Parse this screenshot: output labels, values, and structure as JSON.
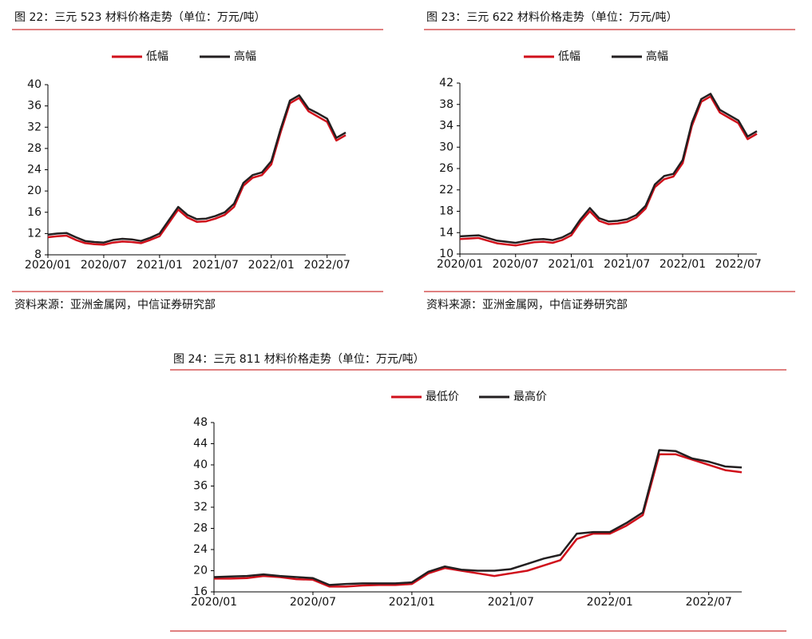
{
  "chart_data": [
    {
      "type": "line",
      "title": "图 22：三元 523 材料价格走势（单位：万元/吨）",
      "source": "资料来源：亚洲金属网，中信证券研究部",
      "categories": [
        "2020/01",
        null,
        null,
        null,
        null,
        null,
        "2020/07",
        null,
        null,
        null,
        null,
        null,
        "2021/01",
        null,
        null,
        null,
        null,
        null,
        "2021/07",
        null,
        null,
        null,
        null,
        null,
        "2022/01",
        null,
        null,
        null,
        null,
        null,
        "2022/07",
        null,
        null
      ],
      "series": [
        {
          "name": "低幅",
          "color": "#d0101b",
          "values": [
            11.3,
            11.5,
            11.6,
            10.8,
            10.2,
            10.0,
            9.9,
            10.3,
            10.5,
            10.4,
            10.2,
            10.8,
            11.5,
            14,
            16.5,
            15,
            14.2,
            14.3,
            14.8,
            15.5,
            17,
            21,
            22.5,
            23,
            25,
            31,
            36.5,
            37.5,
            35,
            34,
            33,
            29.5,
            30.5
          ]
        },
        {
          "name": "高幅",
          "color": "#231f20",
          "values": [
            11.8,
            12,
            12.1,
            11.3,
            10.6,
            10.4,
            10.3,
            10.8,
            11,
            10.9,
            10.6,
            11.2,
            12,
            14.5,
            17,
            15.5,
            14.7,
            14.8,
            15.3,
            16,
            17.6,
            21.5,
            23,
            23.5,
            25.6,
            31.6,
            37,
            38,
            35.5,
            34.6,
            33.6,
            30,
            31
          ]
        }
      ],
      "ylim": [
        8,
        40
      ],
      "yticks": [
        8,
        12,
        16,
        20,
        24,
        28,
        32,
        36,
        40
      ]
    },
    {
      "type": "line",
      "title": "图 23：三元 622 材料价格走势（单位：万元/吨）",
      "source": "资料来源：亚洲金属网，中信证券研究部",
      "categories": [
        "2020/01",
        null,
        null,
        null,
        null,
        null,
        "2020/07",
        null,
        null,
        null,
        null,
        null,
        "2021/01",
        null,
        null,
        null,
        null,
        null,
        "2021/07",
        null,
        null,
        null,
        null,
        null,
        "2022/01",
        null,
        null,
        null,
        null,
        null,
        "2022/07",
        null,
        null
      ],
      "series": [
        {
          "name": "低幅",
          "color": "#d0101b",
          "values": [
            12.8,
            12.9,
            13,
            12.5,
            12,
            11.8,
            11.6,
            11.9,
            12.2,
            12.3,
            12.1,
            12.6,
            13.5,
            16,
            18,
            16.2,
            15.6,
            15.7,
            16,
            16.8,
            18.5,
            22.5,
            24,
            24.5,
            27,
            34,
            38.5,
            39.5,
            36.5,
            35.5,
            34.5,
            31.5,
            32.5
          ]
        },
        {
          "name": "高幅",
          "color": "#231f20",
          "values": [
            13.3,
            13.4,
            13.5,
            13,
            12.5,
            12.3,
            12.1,
            12.4,
            12.7,
            12.8,
            12.6,
            13.1,
            14,
            16.5,
            18.6,
            16.7,
            16.1,
            16.2,
            16.5,
            17.3,
            19,
            23,
            24.6,
            25,
            27.6,
            34.6,
            39,
            40,
            37,
            36,
            35,
            32,
            33
          ]
        }
      ],
      "ylim": [
        10,
        42
      ],
      "yticks": [
        10,
        14,
        18,
        22,
        26,
        30,
        34,
        38,
        42
      ]
    },
    {
      "type": "line",
      "title": "图 24：三元 811 材料价格走势（单位：万元/吨）",
      "categories": [
        "2020/01",
        null,
        null,
        null,
        null,
        null,
        "2020/07",
        null,
        null,
        null,
        null,
        null,
        "2021/01",
        null,
        null,
        null,
        null,
        null,
        "2021/07",
        null,
        null,
        null,
        null,
        null,
        "2022/01",
        null,
        null,
        null,
        null,
        null,
        "2022/07",
        null,
        null
      ],
      "series": [
        {
          "name": "最低价",
          "color": "#d0101b",
          "values": [
            18.5,
            18.5,
            18.6,
            19,
            18.8,
            18.4,
            18.3,
            17,
            17,
            17.2,
            17.3,
            17.3,
            17.5,
            19.5,
            20.5,
            20,
            19.5,
            19,
            19.5,
            20,
            21,
            22,
            26,
            27,
            27,
            28.5,
            30.5,
            42,
            42,
            41,
            40,
            39,
            38.6
          ]
        },
        {
          "name": "最高价",
          "color": "#231f20",
          "values": [
            18.8,
            18.9,
            19,
            19.3,
            19,
            18.8,
            18.6,
            17.3,
            17.5,
            17.6,
            17.6,
            17.6,
            17.8,
            19.8,
            20.8,
            20.2,
            20,
            20,
            20.3,
            21.3,
            22.3,
            23,
            27,
            27.3,
            27.3,
            29,
            31,
            42.8,
            42.6,
            41.2,
            40.6,
            39.7,
            39.5
          ]
        }
      ],
      "ylim": [
        16,
        48
      ],
      "yticks": [
        16,
        20,
        24,
        28,
        32,
        36,
        40,
        44,
        48
      ]
    }
  ]
}
